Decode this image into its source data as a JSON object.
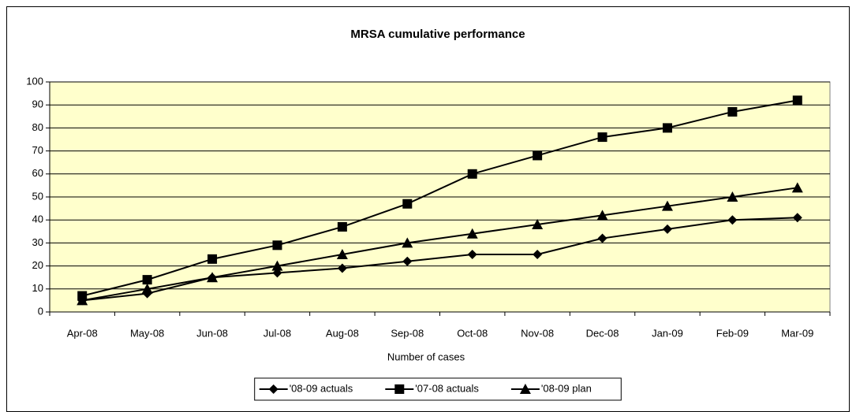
{
  "chart_data": {
    "type": "line",
    "title": "MRSA cumulative performance",
    "x_label": "Number of cases",
    "categories": [
      "Apr-08",
      "May-08",
      "Jun-08",
      "Jul-08",
      "Aug-08",
      "Sep-08",
      "Oct-08",
      "Nov-08",
      "Dec-08",
      "Jan-09",
      "Feb-09",
      "Mar-09"
    ],
    "series": [
      {
        "name": "'08-09 actuals",
        "color": "#000000",
        "marker": "diamond",
        "values": [
          5,
          8,
          15,
          17,
          19,
          22,
          25,
          25,
          32,
          36,
          40,
          41
        ]
      },
      {
        "name": "'07-08 actuals",
        "color": "#000000",
        "marker": "square",
        "values": [
          7,
          14,
          23,
          29,
          37,
          47,
          60,
          68,
          76,
          80,
          87,
          92
        ]
      },
      {
        "name": "'08-09 plan",
        "color": "#000000",
        "marker": "triangle",
        "values": [
          5,
          10,
          15,
          20,
          25,
          30,
          34,
          38,
          42,
          46,
          50,
          54
        ]
      }
    ],
    "ylim": [
      0,
      100
    ],
    "yticks": [
      0,
      10,
      20,
      30,
      40,
      50,
      60,
      70,
      80,
      90,
      100
    ],
    "grid": true,
    "plot_background": "#ffffcc",
    "legend": "bottom"
  }
}
